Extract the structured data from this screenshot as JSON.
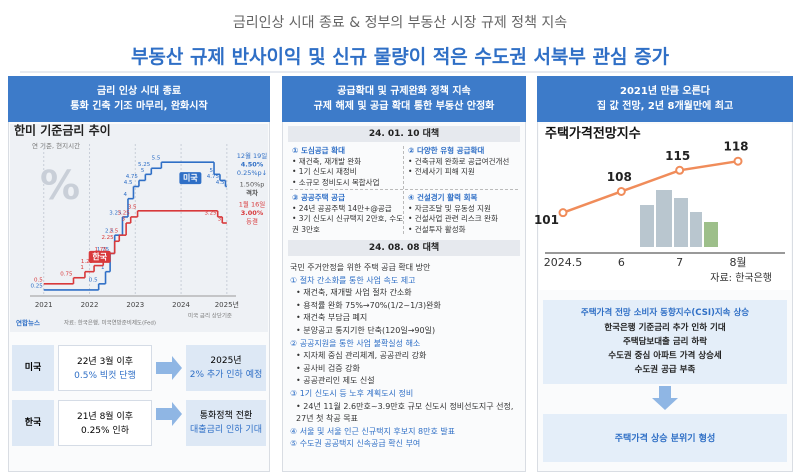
{
  "header": {
    "subtitle": "금리인상 시대 종료 & 정부의 부동산 시장 규제 정책 지속",
    "title": "부동산 규제 반사이익 및 신규 물량이 적은 수도권 서북부 관심 증가"
  },
  "rate_panel": {
    "heading": [
      "금리 인상 시대 종료",
      "통화 긴축 기조 마무리, 완화시작"
    ],
    "chart_data": {
      "type": "step",
      "title": "한미 기준금리 추이",
      "subtitle": "연 기준, 현지시간",
      "watermark": "%",
      "xlim": [
        2020.7,
        2025.2
      ],
      "xticks": [
        2021,
        2022,
        2023,
        2024,
        {
          "value": 2025,
          "label": "2025년"
        }
      ],
      "ylim": [
        0,
        6
      ],
      "series": [
        {
          "name": "미국",
          "color": "#2f6fc6",
          "x": [
            2021.0,
            2022.2,
            2022.35,
            2022.45,
            2022.55,
            2022.72,
            2022.84,
            2022.96,
            2023.08,
            2023.22,
            2023.35,
            2023.57,
            2024.72,
            2024.85,
            2024.97
          ],
          "values": [
            0.25,
            0.5,
            1,
            1.75,
            2.5,
            3.25,
            4,
            4.5,
            4.75,
            5,
            5.25,
            5.5,
            5,
            4.75,
            4.5
          ]
        },
        {
          "name": "한국",
          "color": "#d8393b",
          "x": [
            2021.0,
            2021.65,
            2021.9,
            2022.1,
            2022.3,
            2022.4,
            2022.55,
            2022.65,
            2022.8,
            2022.9,
            2023.05,
            2024.8,
            2024.9
          ],
          "values": [
            0.5,
            0.75,
            1,
            1.25,
            1.5,
            1.75,
            2.25,
            2.5,
            3,
            3.25,
            3.5,
            3.25,
            3
          ]
        }
      ],
      "annotations": [
        {
          "color": "#2f6fc6",
          "lines": [
            "12월 19일",
            "4.50%",
            "0.25%p↓"
          ]
        },
        {
          "color": "#555555",
          "lines": [
            "1.50%p",
            "격차"
          ]
        },
        {
          "color": "#d8393b",
          "lines": [
            "1월 16일",
            "3.00%",
            "동결"
          ]
        }
      ],
      "note": "미국 금리 상단기준",
      "source": "자료: 한국은행, 미국연방준비제도(Fed)",
      "credit": "연합뉴스"
    },
    "table": [
      {
        "label": "미국",
        "from": [
          "22년 3월 이후",
          "0.5% 빅컷 단행"
        ],
        "to": [
          "2025년",
          "2% 추가 인하 예정"
        ]
      },
      {
        "label": "한국",
        "from": [
          "21년 8월 이후",
          "0.25% 인하"
        ],
        "to": [
          "통화정책 전환",
          "대출금리 인하 기대"
        ]
      }
    ]
  },
  "policy_panel": {
    "heading": [
      "공급확대 및 규제완화 정책 지속",
      "규제 해제 및 공급 확대 통한 부동산 안정화"
    ],
    "plan1": {
      "title": "24. 01. 10 대책",
      "items": [
        {
          "heading": "① 도심공급 확대",
          "bullets": [
            "• 재건축, 재개발 완화",
            "• 1기 신도시 재정비",
            "• 소규모 정비도시 복합사업"
          ]
        },
        {
          "heading": "② 다양한 유형 공급확대",
          "bullets": [
            "• 건축규제 완화로 공급여건개선",
            "• 전세사기 피해 지원"
          ]
        },
        {
          "heading": "③ 공공주택 공급",
          "bullets": [
            "• 24년 공공주택 14만+@공급",
            "• 3기 신도시 신규택지 2만호, 수도권 3만호"
          ]
        },
        {
          "heading": "④ 건설경기 활력 회복",
          "bullets": [
            "• 자금조달 및 유동성 지원",
            "• 건설사업 관련 리스크 완화",
            "• 건설투자 활성화"
          ]
        }
      ]
    },
    "plan2": {
      "title": "24. 08. 08 대책",
      "intro": "국민 주거안정을 위한 주택 공급 확대 방안",
      "items": [
        {
          "heading": "① 절차 간소화를 통한 사업 속도 제고",
          "bullets": [
            "• 재건축, 재개발 사업 절차 간소화",
            "• 용적률 완화 75%→70%(1/2~1/3)완화",
            "• 재건축 부담금 폐지",
            "• 분양공고 통지기한 단축(120일→90일)"
          ]
        },
        {
          "heading": "② 공공지원을 통한 사업 불확실성 해소",
          "bullets": [
            "• 지자체 중심 관리체계, 공공관리 강화",
            "• 공사비 검증 강화",
            "• 공공관리인 제도 신설"
          ]
        },
        {
          "heading": "③ 1기 신도시 등 노후 계획도시 정비",
          "bullets": [
            "• 24년 11월 2.6만호~3.9만호 규모 신도시 정비선도지구 선정, 27년 첫 착공 목표"
          ]
        },
        {
          "heading": "④ 서울 및 서울 인근 신규택지 후보지 8만호 발표",
          "bullets": []
        },
        {
          "heading": "⑤ 수도권 공공택지 신속공급 확신 부여",
          "bullets": []
        }
      ]
    }
  },
  "housing_panel": {
    "heading": [
      "2021년 만큼 오른다",
      "집 값 전망, 2년 8개월만에 최고"
    ],
    "chart_data": {
      "type": "line",
      "title": "주택가격전망지수",
      "categories": [
        "2024.5",
        "6",
        "7",
        "8월"
      ],
      "values": [
        101,
        108,
        115,
        118
      ],
      "color": "#f08c5a",
      "ylim": [
        90,
        125
      ],
      "source": "자료: 한국은행"
    },
    "summary": {
      "title": "주택가격 전망 소비자 동향지수(CSI)지속 상승",
      "lines": [
        "한국은행 기준금리 추가 인하 기대",
        "주택담보대출 금리 하락",
        "수도권 중심 아파트 가격 상승세",
        "수도권 공급 부족"
      ]
    },
    "conclusion": "주택가격 상승 분위기 형성"
  }
}
